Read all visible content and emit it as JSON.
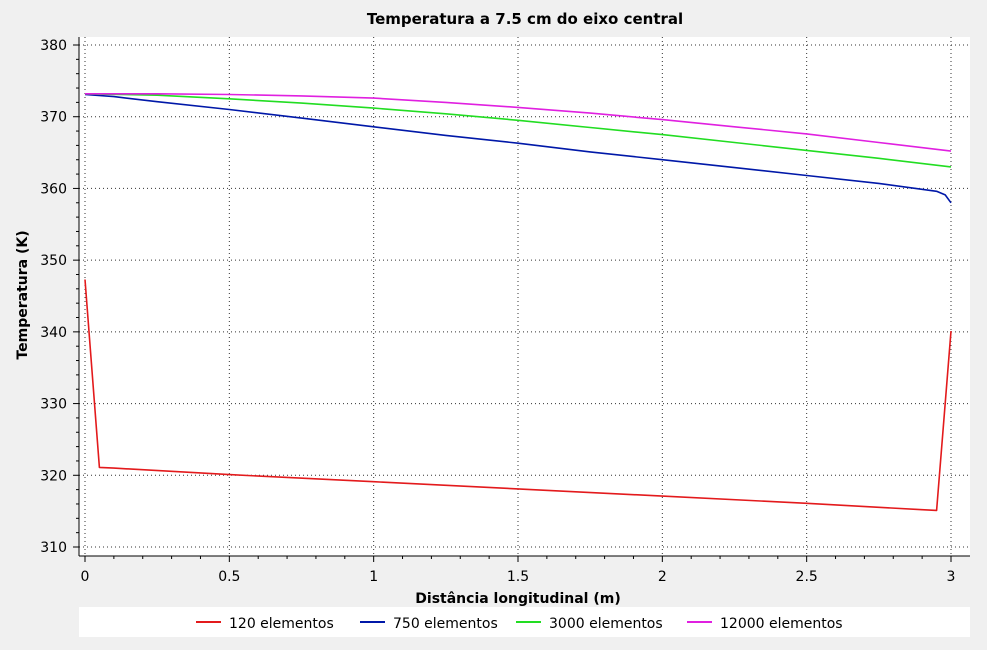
{
  "chart_data": {
    "type": "line",
    "title": "Temperatura a 7.5 cm do eixo central",
    "xlabel": "Distância longitudinal (m)",
    "ylabel": "Temperatura (K)",
    "xlim": [
      0,
      3
    ],
    "ylim": [
      310,
      380
    ],
    "xticks": [
      "0",
      "0.5",
      "1",
      "1.5",
      "2",
      "2.5",
      "3"
    ],
    "yticks": [
      "310",
      "320",
      "330",
      "340",
      "350",
      "360",
      "370",
      "380"
    ],
    "grid": true,
    "legend_position": "bottom",
    "series": [
      {
        "name": "120 elementos",
        "color": "#e31a1c",
        "x": [
          0.0,
          0.05,
          0.1,
          0.5,
          1.0,
          1.5,
          2.0,
          2.5,
          2.9,
          2.95,
          3.0
        ],
        "y": [
          347.3,
          321.1,
          321.0,
          320.1,
          319.1,
          318.1,
          317.1,
          316.1,
          315.2,
          315.1,
          340.1
        ]
      },
      {
        "name": "750 elementos",
        "color": "#0018a8",
        "x": [
          0.0,
          0.1,
          0.25,
          0.5,
          0.75,
          1.0,
          1.25,
          1.5,
          1.75,
          2.0,
          2.25,
          2.5,
          2.75,
          2.95,
          2.98,
          3.0
        ],
        "y": [
          373.1,
          372.8,
          372.1,
          371.0,
          369.8,
          368.6,
          367.4,
          366.3,
          365.1,
          364.0,
          362.9,
          361.8,
          360.7,
          359.6,
          359.1,
          358.0
        ]
      },
      {
        "name": "3000 elementos",
        "color": "#22dd22",
        "x": [
          0.0,
          0.25,
          0.5,
          0.75,
          1.0,
          1.25,
          1.5,
          1.75,
          2.0,
          2.25,
          2.5,
          2.75,
          3.0
        ],
        "y": [
          373.2,
          373.0,
          372.5,
          371.9,
          371.2,
          370.4,
          369.5,
          368.5,
          367.5,
          366.4,
          365.3,
          364.2,
          363.0
        ]
      },
      {
        "name": "12000 elementos",
        "color": "#e020e0",
        "x": [
          0.0,
          0.25,
          0.5,
          0.75,
          1.0,
          1.25,
          1.5,
          1.75,
          2.0,
          2.25,
          2.5,
          2.75,
          3.0
        ],
        "y": [
          373.2,
          373.2,
          373.1,
          372.9,
          372.6,
          372.0,
          371.3,
          370.5,
          369.6,
          368.6,
          367.6,
          366.4,
          365.2
        ]
      }
    ]
  }
}
